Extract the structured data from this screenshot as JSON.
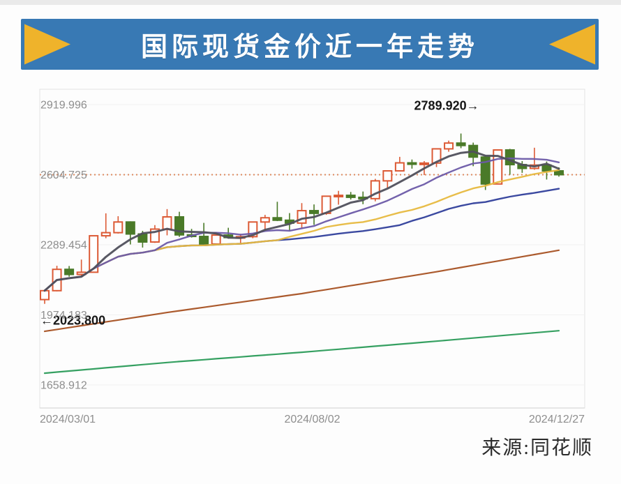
{
  "page": {
    "title": "国际现货金价近一年走势",
    "source": "来源:同花顺"
  },
  "banner": {
    "bg_color": "#3879b4",
    "ribbon_color": "#efb32b"
  },
  "chart_data": {
    "type": "candlestick",
    "title": "国际现货金价近一年走势",
    "x_tick_labels": [
      "2024/03/01",
      "2024/08/02",
      "2024/12/27"
    ],
    "y_ticks": [
      2919.996,
      2604.725,
      2289.454,
      1974.183,
      1658.912
    ],
    "ylim": [
      1658.912,
      2919.996
    ],
    "grid": "faint-horizontal",
    "legend": "none",
    "last_close_line": {
      "value": 2604.725,
      "style": "dotted",
      "color": "#dd8a5f"
    },
    "annotations": [
      {
        "text": "2789.920→",
        "value": 2789.92,
        "type": "high"
      },
      {
        "text": "←2023.800",
        "value": 2023.8,
        "type": "low"
      }
    ],
    "candles_ohlc": [
      [
        2043,
        2088,
        2023.8,
        2083
      ],
      [
        2083,
        2195,
        2080,
        2179
      ],
      [
        2179,
        2194,
        2146,
        2156
      ],
      [
        2156,
        2223,
        2149,
        2166
      ],
      [
        2166,
        2331,
        2164,
        2330
      ],
      [
        2330,
        2431,
        2319,
        2344
      ],
      [
        2344,
        2418,
        2340,
        2392
      ],
      [
        2392,
        2395,
        2291,
        2338
      ],
      [
        2338,
        2352,
        2277,
        2302
      ],
      [
        2302,
        2378,
        2298,
        2360
      ],
      [
        2360,
        2450,
        2332,
        2415
      ],
      [
        2415,
        2438,
        2325,
        2334
      ],
      [
        2334,
        2361,
        2322,
        2327
      ],
      [
        2327,
        2388,
        2287,
        2293
      ],
      [
        2293,
        2336,
        2286,
        2333
      ],
      [
        2333,
        2366,
        2317,
        2322
      ],
      [
        2322,
        2339,
        2293,
        2326
      ],
      [
        2326,
        2393,
        2319,
        2392
      ],
      [
        2392,
        2424,
        2351,
        2411
      ],
      [
        2411,
        2483,
        2396,
        2400
      ],
      [
        2400,
        2432,
        2353,
        2387
      ],
      [
        2387,
        2477,
        2364,
        2443
      ],
      [
        2443,
        2471,
        2379,
        2431
      ],
      [
        2431,
        2509,
        2424,
        2508
      ],
      [
        2508,
        2532,
        2470,
        2512
      ],
      [
        2512,
        2527,
        2493,
        2503
      ],
      [
        2503,
        2529,
        2472,
        2497
      ],
      [
        2497,
        2586,
        2485,
        2577
      ],
      [
        2577,
        2625,
        2546,
        2622
      ],
      [
        2622,
        2685,
        2622,
        2658
      ],
      [
        2658,
        2673,
        2632,
        2653
      ],
      [
        2653,
        2666,
        2603,
        2657
      ],
      [
        2657,
        2722,
        2639,
        2721
      ],
      [
        2721,
        2758,
        2708,
        2747
      ],
      [
        2747,
        2789.92,
        2724,
        2736
      ],
      [
        2736,
        2749,
        2643,
        2684
      ],
      [
        2684,
        2692,
        2536,
        2563
      ],
      [
        2563,
        2718,
        2561,
        2716
      ],
      [
        2716,
        2721,
        2605,
        2650
      ],
      [
        2650,
        2666,
        2613,
        2633
      ],
      [
        2633,
        2726,
        2627,
        2648
      ],
      [
        2648,
        2664,
        2583,
        2622
      ],
      [
        2622,
        2638,
        2596,
        2604.725
      ]
    ],
    "ma_lines_windowed": [
      {
        "name": "ma-slower-navy",
        "window": 30,
        "color": "#303f9b",
        "width": 2.4
      },
      {
        "name": "ma-slow-yellow",
        "window": 20,
        "color": "#e7b93f",
        "width": 2.4
      },
      {
        "name": "ma-mid-purple",
        "window": 10,
        "color": "#6b5aa8",
        "width": 2.4
      },
      {
        "name": "ma-fast-dark",
        "window": 5,
        "color": "#50505c",
        "width": 3
      }
    ],
    "ma_lines_long": [
      {
        "name": "ma-long-brown",
        "color": "#ab5a2d",
        "width": 2.2,
        "points": [
          [
            0,
            1900
          ],
          [
            10,
            1985
          ],
          [
            21,
            2070
          ],
          [
            32,
            2168
          ],
          [
            42,
            2265
          ]
        ]
      },
      {
        "name": "ma-long-green",
        "color": "#35a061",
        "width": 2.2,
        "points": [
          [
            0,
            1712
          ],
          [
            10,
            1760
          ],
          [
            21,
            1806
          ],
          [
            32,
            1856
          ],
          [
            42,
            1903
          ]
        ]
      }
    ],
    "colors": {
      "up": "#dc5a35",
      "up_fill": "#ffffff",
      "down": "#4a7a28",
      "grid": "#f1f1f1",
      "border": "#e3e3e3",
      "axis_line": "#d9d9d9",
      "tick_text": "#8e8e8e",
      "annotation_text": "#161616"
    }
  }
}
